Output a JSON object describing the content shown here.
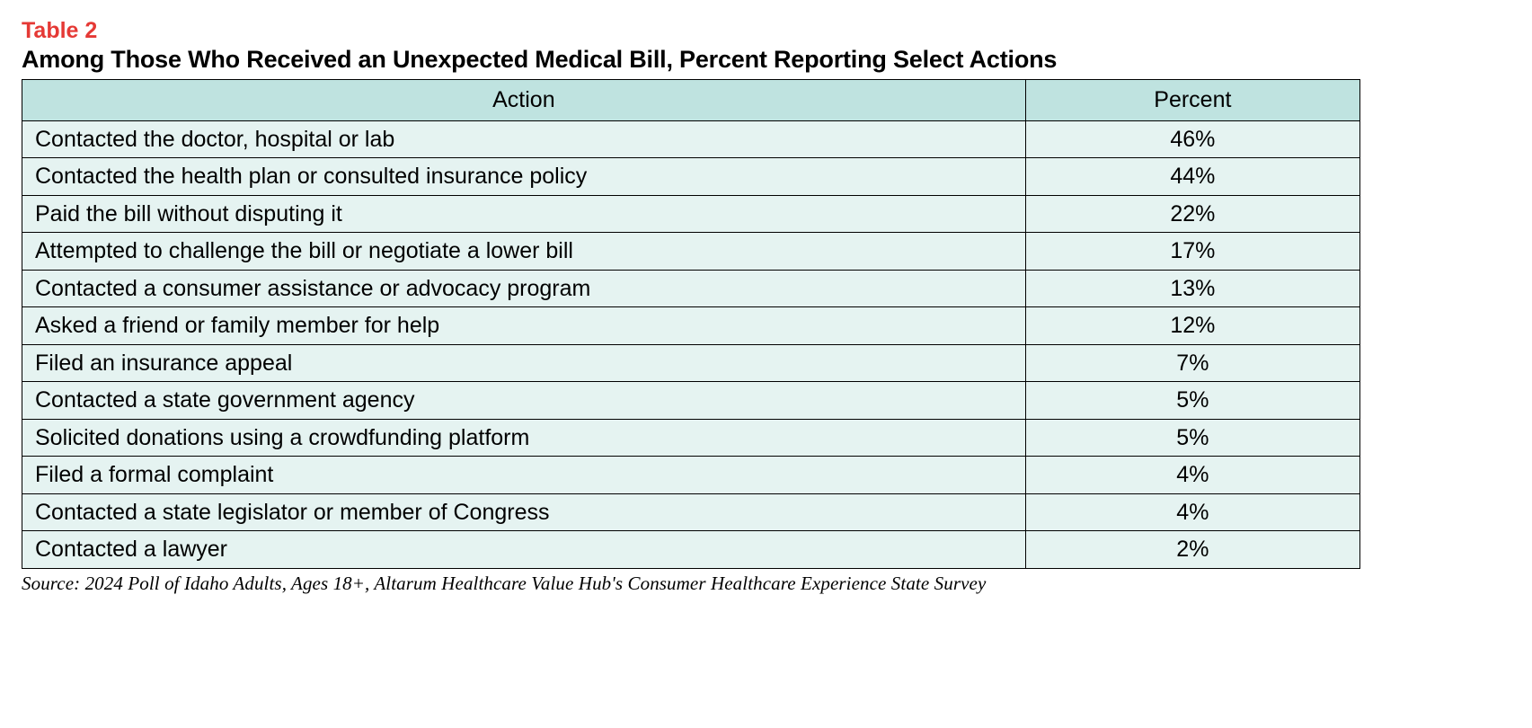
{
  "table": {
    "label": "Table 2",
    "title": "Among Those Who Received an Unexpected Medical Bill, Percent Reporting Select Actions",
    "columns": [
      "Action",
      "Percent"
    ],
    "column_widths_pct": [
      75,
      25
    ],
    "column_align": [
      "left",
      "center"
    ],
    "header_bg": "#bfe3e0",
    "row_bg": "#e5f3f1",
    "border_color": "#000000",
    "header_fontsize": 25,
    "cell_fontsize": 25,
    "label_color": "#e53935",
    "title_color": "#000000",
    "rows": [
      {
        "action": "Contacted the doctor, hospital or lab",
        "percent": "46%"
      },
      {
        "action": "Contacted the health plan or consulted insurance policy",
        "percent": "44%"
      },
      {
        "action": "Paid the bill without disputing it",
        "percent": "22%"
      },
      {
        "action": "Attempted to challenge the bill or negotiate a lower bill",
        "percent": "17%"
      },
      {
        "action": "Contacted a consumer assistance or advocacy program",
        "percent": "13%"
      },
      {
        "action": "Asked a friend or family member for help",
        "percent": "12%"
      },
      {
        "action": "Filed an insurance appeal",
        "percent": "7%"
      },
      {
        "action": "Contacted a state government agency",
        "percent": "5%"
      },
      {
        "action": "Solicited donations using a crowdfunding platform",
        "percent": "5%"
      },
      {
        "action": "Filed a formal complaint",
        "percent": "4%"
      },
      {
        "action": "Contacted a state legislator or member of Congress",
        "percent": "4%"
      },
      {
        "action": "Contacted a lawyer",
        "percent": "2%"
      }
    ],
    "source": "Source: 2024 Poll of Idaho Adults, Ages 18+, Altarum Healthcare Value Hub's Consumer Healthcare Experience State Survey"
  }
}
